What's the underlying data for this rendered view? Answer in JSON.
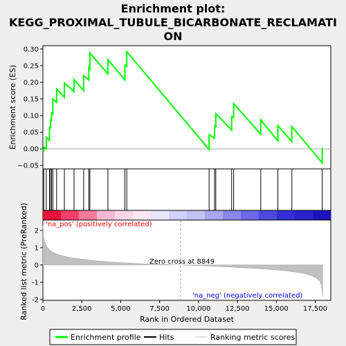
{
  "chart_data": {
    "type": "line",
    "title_line1": "Enrichment plot:",
    "title_line2": "KEGG_PROXIMAL_TUBULE_BICARBONATE_RECLAMATI",
    "title_line3": "ON",
    "es_panel": {
      "ylabel": "Enrichment score (ES)",
      "ylim": [
        -0.06,
        0.31
      ],
      "yticks": [
        -0.05,
        0.0,
        0.05,
        0.1,
        0.15,
        0.2,
        0.25,
        0.3
      ],
      "ytick_labels": [
        "−0.05",
        "0.00",
        "0.05",
        "0.10",
        "0.15",
        "0.20",
        "0.25",
        "0.30"
      ],
      "line_color": "#00ff00",
      "hits": [
        60,
        220,
        420,
        490,
        560,
        640,
        880,
        1380,
        2000,
        2620,
        2950,
        3020,
        4180,
        5270,
        5390,
        10680,
        11030,
        11110,
        12130,
        12260,
        14000,
        15100,
        16000,
        17950
      ],
      "es_curve": {
        "x": [
          0,
          60,
          60,
          220,
          220,
          420,
          420,
          490,
          490,
          560,
          560,
          640,
          640,
          880,
          880,
          1380,
          1380,
          2000,
          2000,
          2620,
          2620,
          2950,
          2950,
          3020,
          3020,
          4180,
          4180,
          5270,
          5270,
          5390,
          5390,
          10680,
          10680,
          11030,
          11030,
          11110,
          11110,
          12130,
          12130,
          12260,
          12260,
          14000,
          14000,
          15100,
          15100,
          16000,
          16000,
          17950,
          17950
        ],
        "y": [
          0.0,
          -0.008,
          0.005,
          0.0,
          0.035,
          0.025,
          0.064,
          0.063,
          0.087,
          0.085,
          0.108,
          0.105,
          0.15,
          0.14,
          0.18,
          0.155,
          0.198,
          0.172,
          0.208,
          0.175,
          0.22,
          0.207,
          0.245,
          0.24,
          0.288,
          0.225,
          0.268,
          0.207,
          0.252,
          0.248,
          0.292,
          -0.002,
          0.043,
          0.032,
          0.068,
          0.066,
          0.106,
          0.056,
          0.097,
          0.094,
          0.136,
          0.044,
          0.087,
          0.024,
          0.07,
          0.022,
          0.067,
          -0.042,
          0.004
        ]
      }
    },
    "rank_panel": {
      "ylabel": "Ranked list metric (PreRanked)",
      "ylim": [
        -2.05,
        2.6
      ],
      "yticks": [
        -2,
        -1,
        0,
        1,
        2
      ],
      "ytick_labels": [
        "-2",
        "-1",
        "0",
        "1",
        "2"
      ],
      "zero_cross_label": "Zero cross at 8849",
      "zero_cross": 8849,
      "pos_label": "'na_pos' (positively correlated)",
      "neg_label": "'na_neg' (negatively correlated)",
      "pos_color": "#ff0000",
      "neg_color": "#0000ff",
      "metric_samples": {
        "x": [
          0,
          50,
          150,
          300,
          500,
          800,
          1200,
          1700,
          2300,
          3000,
          3800,
          4700,
          5700,
          6800,
          7900,
          8849,
          9800,
          10800,
          11800,
          12800,
          13800,
          14800,
          15600,
          16300,
          16900,
          17300,
          17600,
          17800,
          17900,
          17980
        ],
        "y": [
          2.3,
          1.6,
          1.25,
          1.0,
          0.82,
          0.66,
          0.54,
          0.44,
          0.36,
          0.28,
          0.21,
          0.15,
          0.1,
          0.05,
          0.02,
          0.0,
          -0.03,
          -0.07,
          -0.11,
          -0.16,
          -0.21,
          -0.27,
          -0.34,
          -0.42,
          -0.52,
          -0.63,
          -0.78,
          -0.95,
          -1.2,
          -1.85
        ]
      }
    },
    "x_axis": {
      "xlabel": "Rank in Ordered Dataset",
      "xlim": [
        0,
        18500
      ],
      "xticks": [
        0,
        2500,
        5000,
        7500,
        10000,
        12500,
        15000,
        17500
      ],
      "xtick_labels": [
        "0",
        "2,500",
        "5,000",
        "7,500",
        "10,000",
        "12,500",
        "15,000",
        "17,500"
      ]
    },
    "legend": [
      {
        "label": "Enrichment profile",
        "color": "#00ff00"
      },
      {
        "label": "Hits",
        "color": "#000000"
      },
      {
        "label": "Ranking metric scores",
        "color": "#c0c0c0"
      }
    ]
  }
}
